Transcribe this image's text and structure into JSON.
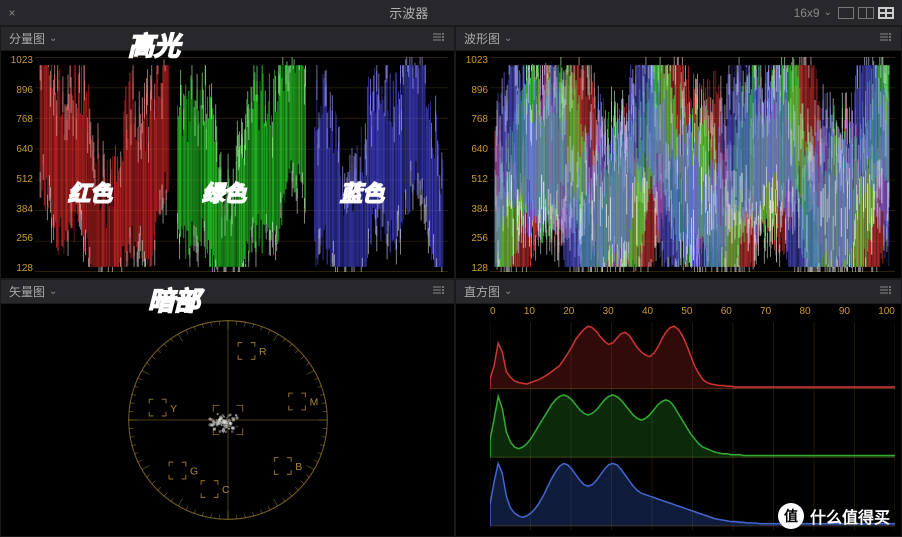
{
  "top": {
    "title": "示波器",
    "aspect": "16x9"
  },
  "panels": {
    "parade": {
      "label": "分量图"
    },
    "waveform": {
      "label": "波形图"
    },
    "vector": {
      "label": "矢量图"
    },
    "histogram": {
      "label": "直方图"
    }
  },
  "overlays": {
    "highlights": "高光",
    "shadows": "暗部",
    "red": "红色",
    "green": "绿色",
    "blue": "蓝色"
  },
  "yTicks": [
    "1023",
    "896",
    "768",
    "640",
    "512",
    "384",
    "256",
    "128"
  ],
  "xTicks": [
    "0",
    "10",
    "20",
    "30",
    "40",
    "50",
    "60",
    "70",
    "80",
    "90",
    "100"
  ],
  "vector_targets": [
    "R",
    "M",
    "B",
    "G",
    "C",
    "Y"
  ],
  "colors": {
    "axis": "#cc9933",
    "grid": "rgba(160,120,40,0.25)",
    "red": "#ff3030",
    "green": "#30ff30",
    "blue": "#5050ff",
    "overlay_text": "#ff1a4a",
    "hist_red": "#aa2020",
    "hist_green": "#208020",
    "hist_blue": "#204080",
    "panel_bg": "#000000",
    "header_bg": "#28282c"
  },
  "parade": {
    "type": "waveform-rgb-parade",
    "ylim": [
      0,
      1023
    ],
    "channels": [
      {
        "name": "red",
        "color": "#ff3030",
        "glow": "#ffaaaa"
      },
      {
        "name": "green",
        "color": "#30ff30",
        "glow": "#aaffaa"
      },
      {
        "name": "blue",
        "color": "#5050ff",
        "glow": "#aaaaff"
      }
    ]
  },
  "waveform": {
    "type": "waveform-overlay",
    "ylim": [
      0,
      1023
    ]
  },
  "vectorscope": {
    "type": "vectorscope",
    "radius": 95,
    "target_color": "#aa8833",
    "targets": [
      {
        "label": "R",
        "angle_deg": -75
      },
      {
        "label": "M",
        "angle_deg": -15
      },
      {
        "label": "B",
        "angle_deg": 40
      },
      {
        "label": "G",
        "angle_deg": 135
      },
      {
        "label": "C",
        "angle_deg": 105
      },
      {
        "label": "Y",
        "angle_deg": 190
      }
    ]
  },
  "histogram": {
    "type": "histogram-rgb",
    "xlim": [
      0,
      100
    ],
    "channels": [
      {
        "name": "red",
        "stroke": "#cc3333",
        "fill": "rgba(140,30,30,0.35)",
        "data": [
          12,
          30,
          60,
          48,
          22,
          15,
          10,
          8,
          7,
          6,
          8,
          10,
          12,
          15,
          18,
          22,
          26,
          30,
          38,
          46,
          55,
          65,
          72,
          78,
          82,
          80,
          75,
          68,
          62,
          58,
          60,
          66,
          72,
          74,
          70,
          62,
          54,
          48,
          44,
          42,
          46,
          54,
          65,
          74,
          80,
          82,
          78,
          70,
          58,
          44,
          30,
          20,
          12,
          8,
          6,
          5,
          4,
          4,
          3,
          3,
          2,
          2,
          2,
          2,
          2,
          2,
          2,
          2,
          2,
          2,
          2,
          2,
          2,
          2,
          2,
          2,
          2,
          2,
          2,
          2,
          2,
          2,
          2,
          2,
          2,
          2,
          2,
          2,
          2,
          2,
          2,
          2,
          2,
          2,
          2,
          2,
          2,
          2,
          2,
          2
        ]
      },
      {
        "name": "green",
        "stroke": "#33aa33",
        "fill": "rgba(30,120,30,0.35)",
        "data": [
          20,
          45,
          72,
          58,
          30,
          18,
          12,
          10,
          12,
          16,
          22,
          30,
          38,
          46,
          54,
          62,
          68,
          72,
          74,
          72,
          68,
          62,
          56,
          52,
          50,
          52,
          56,
          62,
          68,
          72,
          74,
          72,
          68,
          62,
          56,
          50,
          46,
          44,
          46,
          50,
          56,
          62,
          66,
          68,
          66,
          60,
          52,
          44,
          36,
          28,
          22,
          16,
          12,
          10,
          8,
          6,
          5,
          4,
          4,
          3,
          3,
          3,
          2,
          2,
          2,
          2,
          2,
          2,
          2,
          2,
          2,
          2,
          2,
          2,
          2,
          2,
          2,
          2,
          2,
          2,
          2,
          2,
          2,
          2,
          2,
          2,
          2,
          2,
          2,
          2,
          2,
          2,
          2,
          2,
          2,
          2,
          2,
          2,
          2,
          2
        ]
      },
      {
        "name": "blue",
        "stroke": "#4466cc",
        "fill": "rgba(40,70,150,0.4)",
        "data": [
          30,
          62,
          88,
          74,
          42,
          25,
          18,
          14,
          12,
          14,
          18,
          24,
          32,
          42,
          54,
          66,
          76,
          84,
          88,
          86,
          80,
          72,
          64,
          58,
          56,
          58,
          64,
          72,
          80,
          86,
          88,
          86,
          80,
          72,
          64,
          56,
          50,
          46,
          44,
          42,
          40,
          38,
          36,
          34,
          32,
          30,
          28,
          26,
          24,
          22,
          20,
          18,
          16,
          14,
          12,
          10,
          9,
          8,
          7,
          6,
          6,
          5,
          5,
          4,
          4,
          4,
          3,
          3,
          3,
          3,
          3,
          3,
          3,
          3,
          3,
          3,
          3,
          3,
          3,
          3,
          3,
          3,
          3,
          3,
          3,
          3,
          3,
          3,
          3,
          3,
          3,
          3,
          3,
          3,
          3,
          3,
          3,
          3,
          3,
          3
        ]
      }
    ]
  },
  "watermark": {
    "badge": "值",
    "text": "什么值得买"
  }
}
